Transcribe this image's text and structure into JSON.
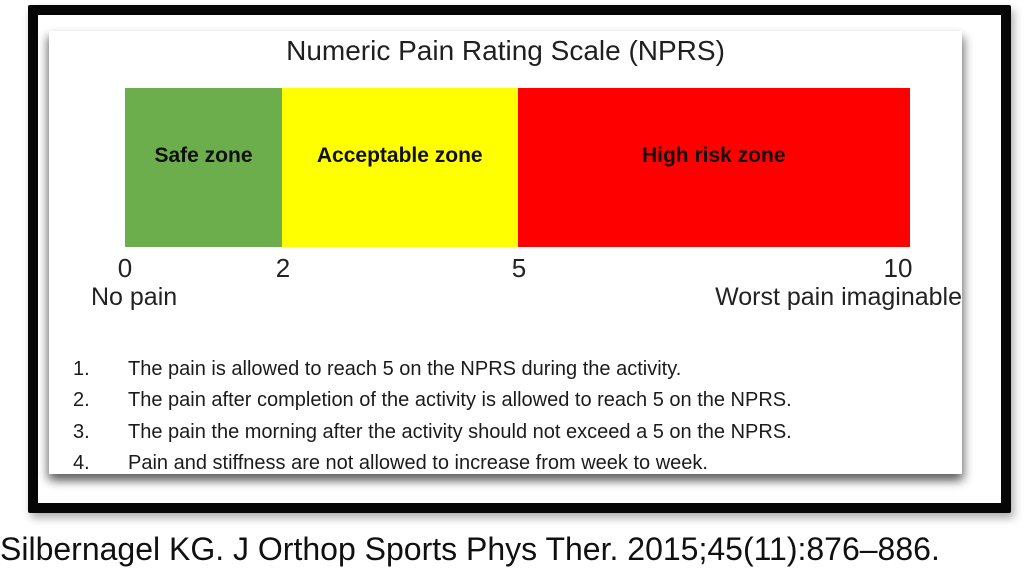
{
  "figure": {
    "title": "Numeric Pain Rating Scale (NPRS)",
    "scale": {
      "min_label": "No pain",
      "max_label": "Worst pain imaginable"
    },
    "rules": [
      {
        "number": "1.",
        "text": "The pain is allowed to reach 5 on the NPRS during the activity."
      },
      {
        "number": "2.",
        "text": "The pain after completion of the activity is allowed to reach 5 on the NPRS."
      },
      {
        "number": "3.",
        "text": "The pain the morning after the activity should not exceed a 5 on the NPRS."
      },
      {
        "number": "4.",
        "text": "Pain and stiffness are not allowed to increase from week to week."
      }
    ]
  },
  "citation": "Silbernagel KG. J Orthop Sports Phys Ther. 2015;45(11):876–886.",
  "chart_data": {
    "type": "bar",
    "title": "Numeric Pain Rating Scale (NPRS)",
    "xlabel": "",
    "ylabel": "",
    "legend": false,
    "grid": false,
    "axis": {
      "min": 0,
      "max": 10,
      "ticks": [
        "0",
        "2",
        "5",
        "10"
      ],
      "min_label": "No pain",
      "max_label": "Worst pain imaginable"
    },
    "zones": [
      {
        "label": "Safe zone",
        "start": 0,
        "end": 2,
        "color": "#6CAE4C"
      },
      {
        "label": "Acceptable zone",
        "start": 2,
        "end": 5,
        "color": "#FFFF00"
      },
      {
        "label": "High risk zone",
        "start": 5,
        "end": 10,
        "color": "#FF0000"
      }
    ]
  }
}
